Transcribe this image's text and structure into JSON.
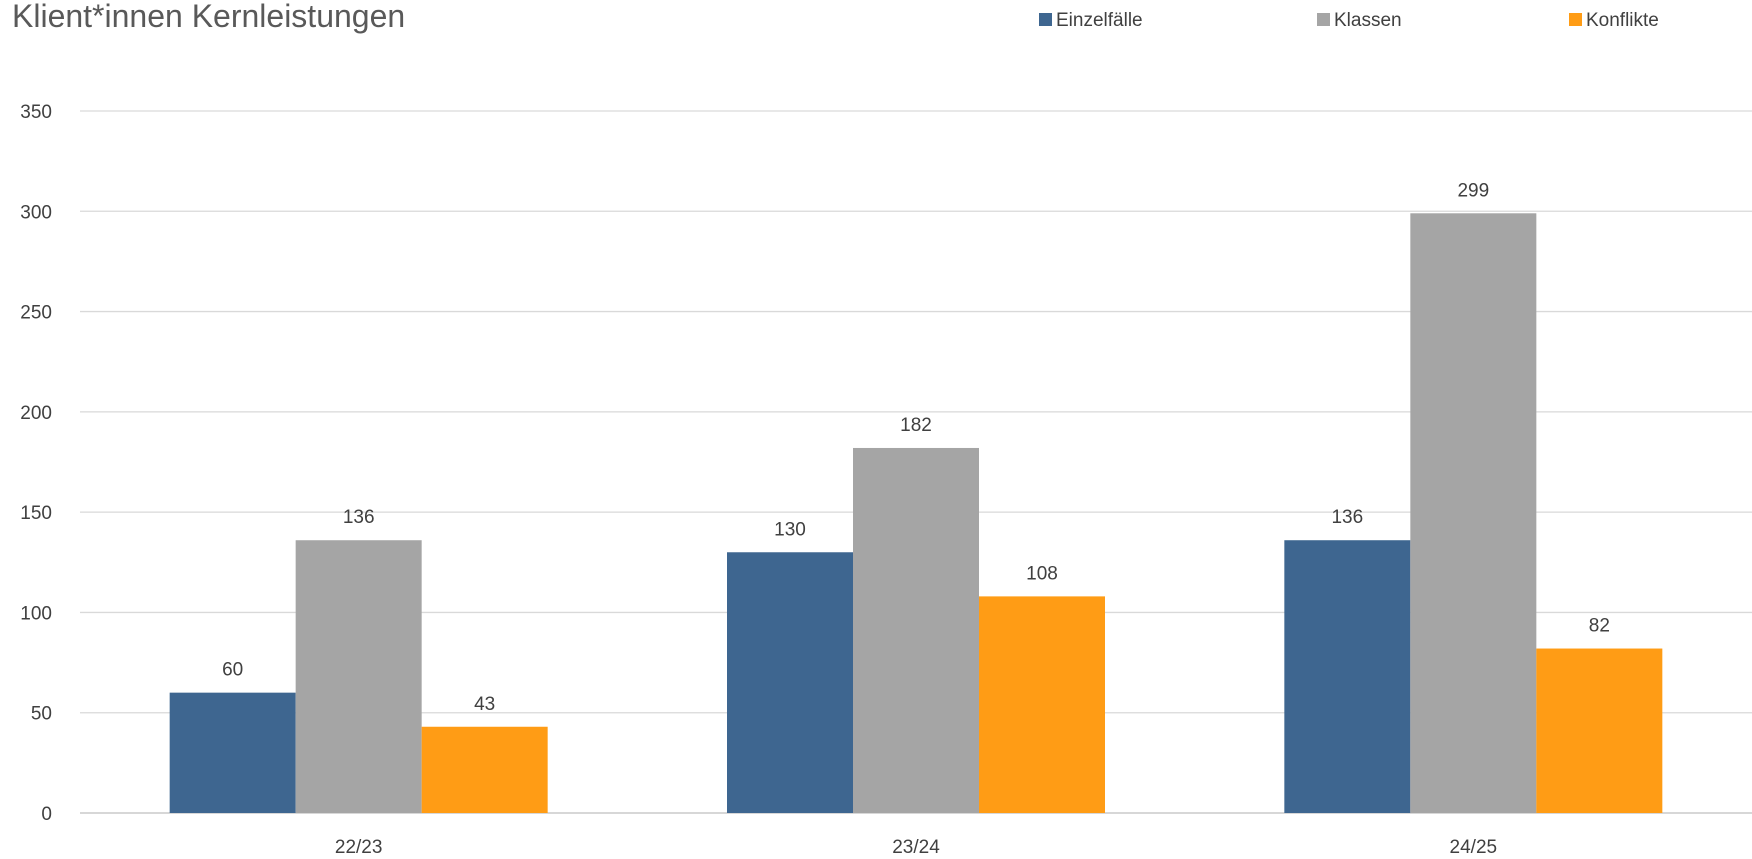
{
  "chart_data": {
    "type": "bar",
    "title": "Klient*innen Kernleistungen",
    "xlabel": "",
    "ylabel": "",
    "categories": [
      "22/23",
      "23/24",
      "24/25"
    ],
    "series": [
      {
        "name": "Einzelfälle",
        "values": [
          60,
          130,
          136
        ],
        "color": "#3e6690"
      },
      {
        "name": "Klassen",
        "values": [
          136,
          182,
          299
        ],
        "color": "#a5a5a5"
      },
      {
        "name": "Konflikte",
        "values": [
          43,
          108,
          82
        ],
        "color": "#ff9c15"
      }
    ],
    "ylim": [
      0,
      350
    ],
    "yticks": [
      0,
      50,
      100,
      150,
      200,
      250,
      300,
      350
    ],
    "grid": true,
    "legend": "top-right",
    "data_labels": true
  }
}
